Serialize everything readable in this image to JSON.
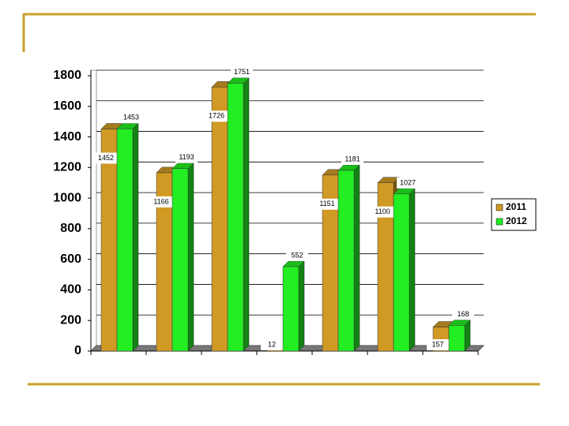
{
  "chart_data": {
    "type": "bar",
    "categories": [
      null,
      null,
      null,
      null,
      null,
      null,
      null
    ],
    "series": [
      {
        "name": "2011",
        "color": "#d09a24",
        "values": [
          1452,
          1166,
          1726,
          12,
          1151,
          1100,
          157
        ]
      },
      {
        "name": "2012",
        "color": "#22ee22",
        "values": [
          1453,
          1193,
          1751,
          552,
          1181,
          1027,
          168
        ]
      }
    ],
    "ylim": [
      0,
      1800
    ],
    "yticks": [
      0,
      200,
      400,
      600,
      800,
      1000,
      1200,
      1400,
      1600,
      1800
    ],
    "grid": true,
    "legend": "right"
  }
}
